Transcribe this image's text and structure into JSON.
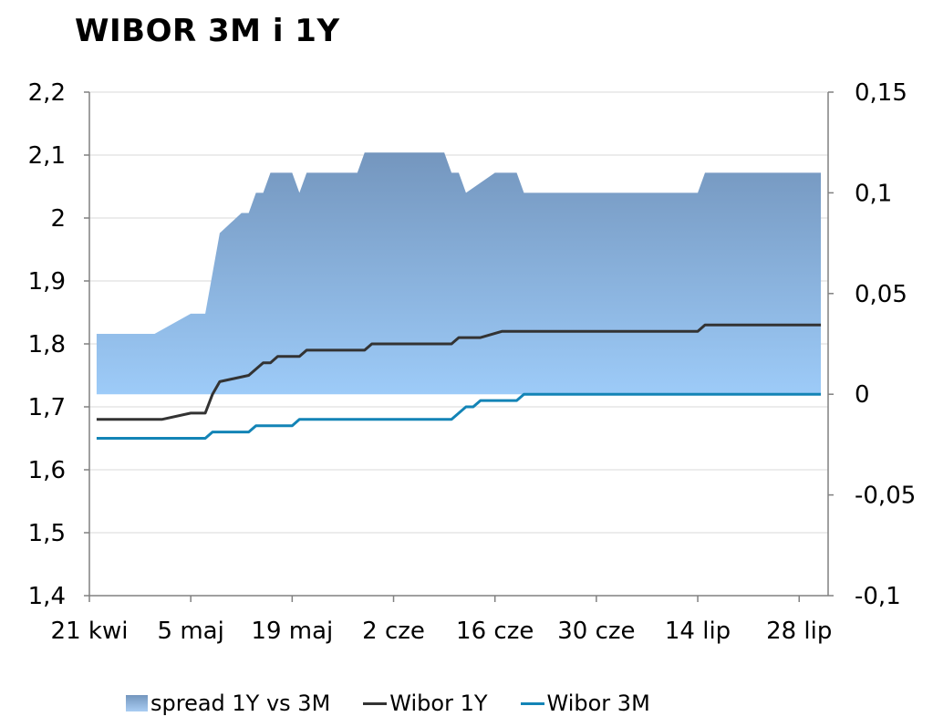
{
  "title": "WIBOR 3M i 1Y",
  "colors": {
    "spread_top": "#7496be",
    "spread_bottom": "#9dcbf8",
    "wibor1y": "#333333",
    "wibor3m": "#1384b6",
    "grid": "#d9d9d9",
    "axis": "#808080"
  },
  "legend": {
    "spread": "spread 1Y vs 3M",
    "wibor1y": "Wibor 1Y",
    "wibor3m": "Wibor 3M"
  },
  "chart_data": {
    "type": "line",
    "title": "WIBOR 3M i 1Y",
    "x_axis": {
      "type": "date",
      "range": [
        "2014-04-21",
        "2014-08-01"
      ],
      "tick_labels": [
        "21 kwi",
        "5 maj",
        "19 maj",
        "2 cze",
        "16 cze",
        "30 cze",
        "14 lip",
        "28 lip"
      ],
      "tick_dates": [
        "2014-04-21",
        "2014-05-05",
        "2014-05-19",
        "2014-06-02",
        "2014-06-16",
        "2014-06-30",
        "2014-07-14",
        "2014-07-28"
      ]
    },
    "y_left": {
      "range": [
        1.4,
        2.2
      ],
      "tick_labels": [
        "1,4",
        "1,5",
        "1,6",
        "1,7",
        "1,8",
        "1,9",
        "2",
        "2,1",
        "2,2"
      ],
      "tick_values": [
        1.4,
        1.5,
        1.6,
        1.7,
        1.8,
        1.9,
        2.0,
        2.1,
        2.2
      ]
    },
    "y_right": {
      "range": [
        -0.1,
        0.15
      ],
      "tick_labels": [
        "-0,1",
        "-0,05",
        "0",
        "0,05",
        "0,1",
        "0,15"
      ],
      "tick_values": [
        -0.1,
        -0.05,
        0,
        0.05,
        0.1,
        0.15
      ]
    },
    "grid": "horizontal",
    "legend_position": "bottom",
    "series": [
      {
        "name": "spread 1Y vs 3M",
        "type": "area",
        "axis": "right",
        "points": [
          [
            "2014-04-22",
            0.03
          ],
          [
            "2014-04-30",
            0.03
          ],
          [
            "2014-05-05",
            0.04
          ],
          [
            "2014-05-07",
            0.04
          ],
          [
            "2014-05-08",
            0.06
          ],
          [
            "2014-05-09",
            0.08
          ],
          [
            "2014-05-12",
            0.09
          ],
          [
            "2014-05-13",
            0.09
          ],
          [
            "2014-05-14",
            0.1
          ],
          [
            "2014-05-15",
            0.1
          ],
          [
            "2014-05-16",
            0.11
          ],
          [
            "2014-05-19",
            0.11
          ],
          [
            "2014-05-20",
            0.1
          ],
          [
            "2014-05-21",
            0.11
          ],
          [
            "2014-05-28",
            0.11
          ],
          [
            "2014-05-29",
            0.12
          ],
          [
            "2014-06-09",
            0.12
          ],
          [
            "2014-06-10",
            0.11
          ],
          [
            "2014-06-11",
            0.11
          ],
          [
            "2014-06-12",
            0.1
          ],
          [
            "2014-06-16",
            0.11
          ],
          [
            "2014-06-19",
            0.11
          ],
          [
            "2014-06-20",
            0.1
          ],
          [
            "2014-07-14",
            0.1
          ],
          [
            "2014-07-15",
            0.11
          ],
          [
            "2014-07-31",
            0.11
          ]
        ]
      },
      {
        "name": "Wibor 1Y",
        "type": "line",
        "axis": "left",
        "points": [
          [
            "2014-04-22",
            1.68
          ],
          [
            "2014-05-01",
            1.68
          ],
          [
            "2014-05-05",
            1.69
          ],
          [
            "2014-05-07",
            1.69
          ],
          [
            "2014-05-08",
            1.72
          ],
          [
            "2014-05-09",
            1.74
          ],
          [
            "2014-05-13",
            1.75
          ],
          [
            "2014-05-15",
            1.77
          ],
          [
            "2014-05-16",
            1.77
          ],
          [
            "2014-05-17",
            1.78
          ],
          [
            "2014-05-20",
            1.78
          ],
          [
            "2014-05-21",
            1.79
          ],
          [
            "2014-05-29",
            1.79
          ],
          [
            "2014-05-30",
            1.8
          ],
          [
            "2014-06-10",
            1.8
          ],
          [
            "2014-06-11",
            1.81
          ],
          [
            "2014-06-14",
            1.81
          ],
          [
            "2014-06-17",
            1.82
          ],
          [
            "2014-07-14",
            1.82
          ],
          [
            "2014-07-15",
            1.83
          ],
          [
            "2014-07-31",
            1.83
          ]
        ]
      },
      {
        "name": "Wibor 3M",
        "type": "line",
        "axis": "left",
        "points": [
          [
            "2014-04-22",
            1.65
          ],
          [
            "2014-05-07",
            1.65
          ],
          [
            "2014-05-08",
            1.66
          ],
          [
            "2014-05-13",
            1.66
          ],
          [
            "2014-05-14",
            1.67
          ],
          [
            "2014-05-19",
            1.67
          ],
          [
            "2014-05-20",
            1.68
          ],
          [
            "2014-06-10",
            1.68
          ],
          [
            "2014-06-12",
            1.7
          ],
          [
            "2014-06-13",
            1.7
          ],
          [
            "2014-06-14",
            1.71
          ],
          [
            "2014-06-19",
            1.71
          ],
          [
            "2014-06-20",
            1.72
          ],
          [
            "2014-07-31",
            1.72
          ]
        ]
      }
    ]
  }
}
